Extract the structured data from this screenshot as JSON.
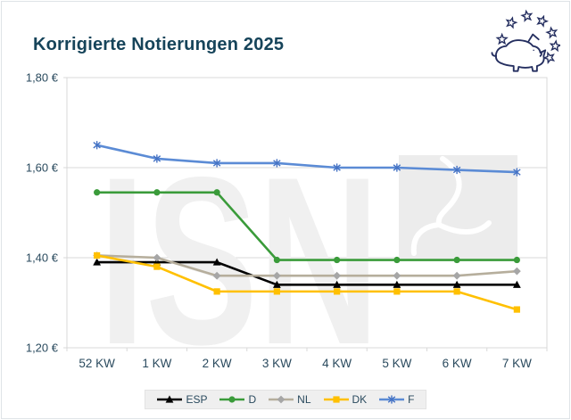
{
  "header": {
    "title": "Korrigierte Notierungen 2025"
  },
  "icons": {
    "logo": "pig-with-eu-stars",
    "watermark_pig": "pig-outline"
  },
  "watermark": {
    "text": "ISN"
  },
  "colors": {
    "title": "#16445a",
    "axis_label": "#2a4a5e",
    "grid": "#d9d9d9",
    "watermark_text": "#f0f0f0",
    "watermark_box": "#ececec",
    "legend_bg": "#efefef",
    "logo_navy": "#252f60"
  },
  "chart_data": {
    "type": "line",
    "title": "Korrigierte Notierungen 2025",
    "categories": [
      "52 KW",
      "1 KW",
      "2 KW",
      "3 KW",
      "4 KW",
      "5 KW",
      "6 KW",
      "7 KW"
    ],
    "series": [
      {
        "name": "ESP",
        "color": "#000000",
        "marker": "triangle",
        "marker_color": "#000000",
        "values": [
          1.39,
          1.39,
          1.39,
          1.34,
          1.34,
          1.34,
          1.34,
          1.34
        ]
      },
      {
        "name": "D",
        "color": "#3a9b3a",
        "marker": "circle",
        "marker_color": "#3a9b3a",
        "values": [
          1.545,
          1.545,
          1.545,
          1.395,
          1.395,
          1.395,
          1.395,
          1.395
        ]
      },
      {
        "name": "NL",
        "color": "#b6ae9c",
        "marker": "diamond",
        "marker_color": "#a6a6a6",
        "values": [
          1.405,
          1.4,
          1.36,
          1.36,
          1.36,
          1.36,
          1.36,
          1.37
        ]
      },
      {
        "name": "DK",
        "color": "#ffc000",
        "marker": "square",
        "marker_color": "#ffc000",
        "values": [
          1.405,
          1.38,
          1.325,
          1.325,
          1.325,
          1.325,
          1.325,
          1.285
        ]
      },
      {
        "name": "F",
        "color": "#5b8bd5",
        "marker": "asterisk",
        "marker_color": "#4472c4",
        "values": [
          1.65,
          1.62,
          1.61,
          1.61,
          1.6,
          1.6,
          1.595,
          1.59
        ]
      }
    ],
    "ylim": [
      1.2,
      1.8
    ],
    "yticks": [
      {
        "value": 1.8,
        "label": "1,80 €"
      },
      {
        "value": 1.6,
        "label": "1,60 €"
      },
      {
        "value": 1.4,
        "label": "1,40 €"
      },
      {
        "value": 1.2,
        "label": "1,20 €"
      }
    ],
    "grid": "horizontal",
    "legend_position": "bottom"
  }
}
